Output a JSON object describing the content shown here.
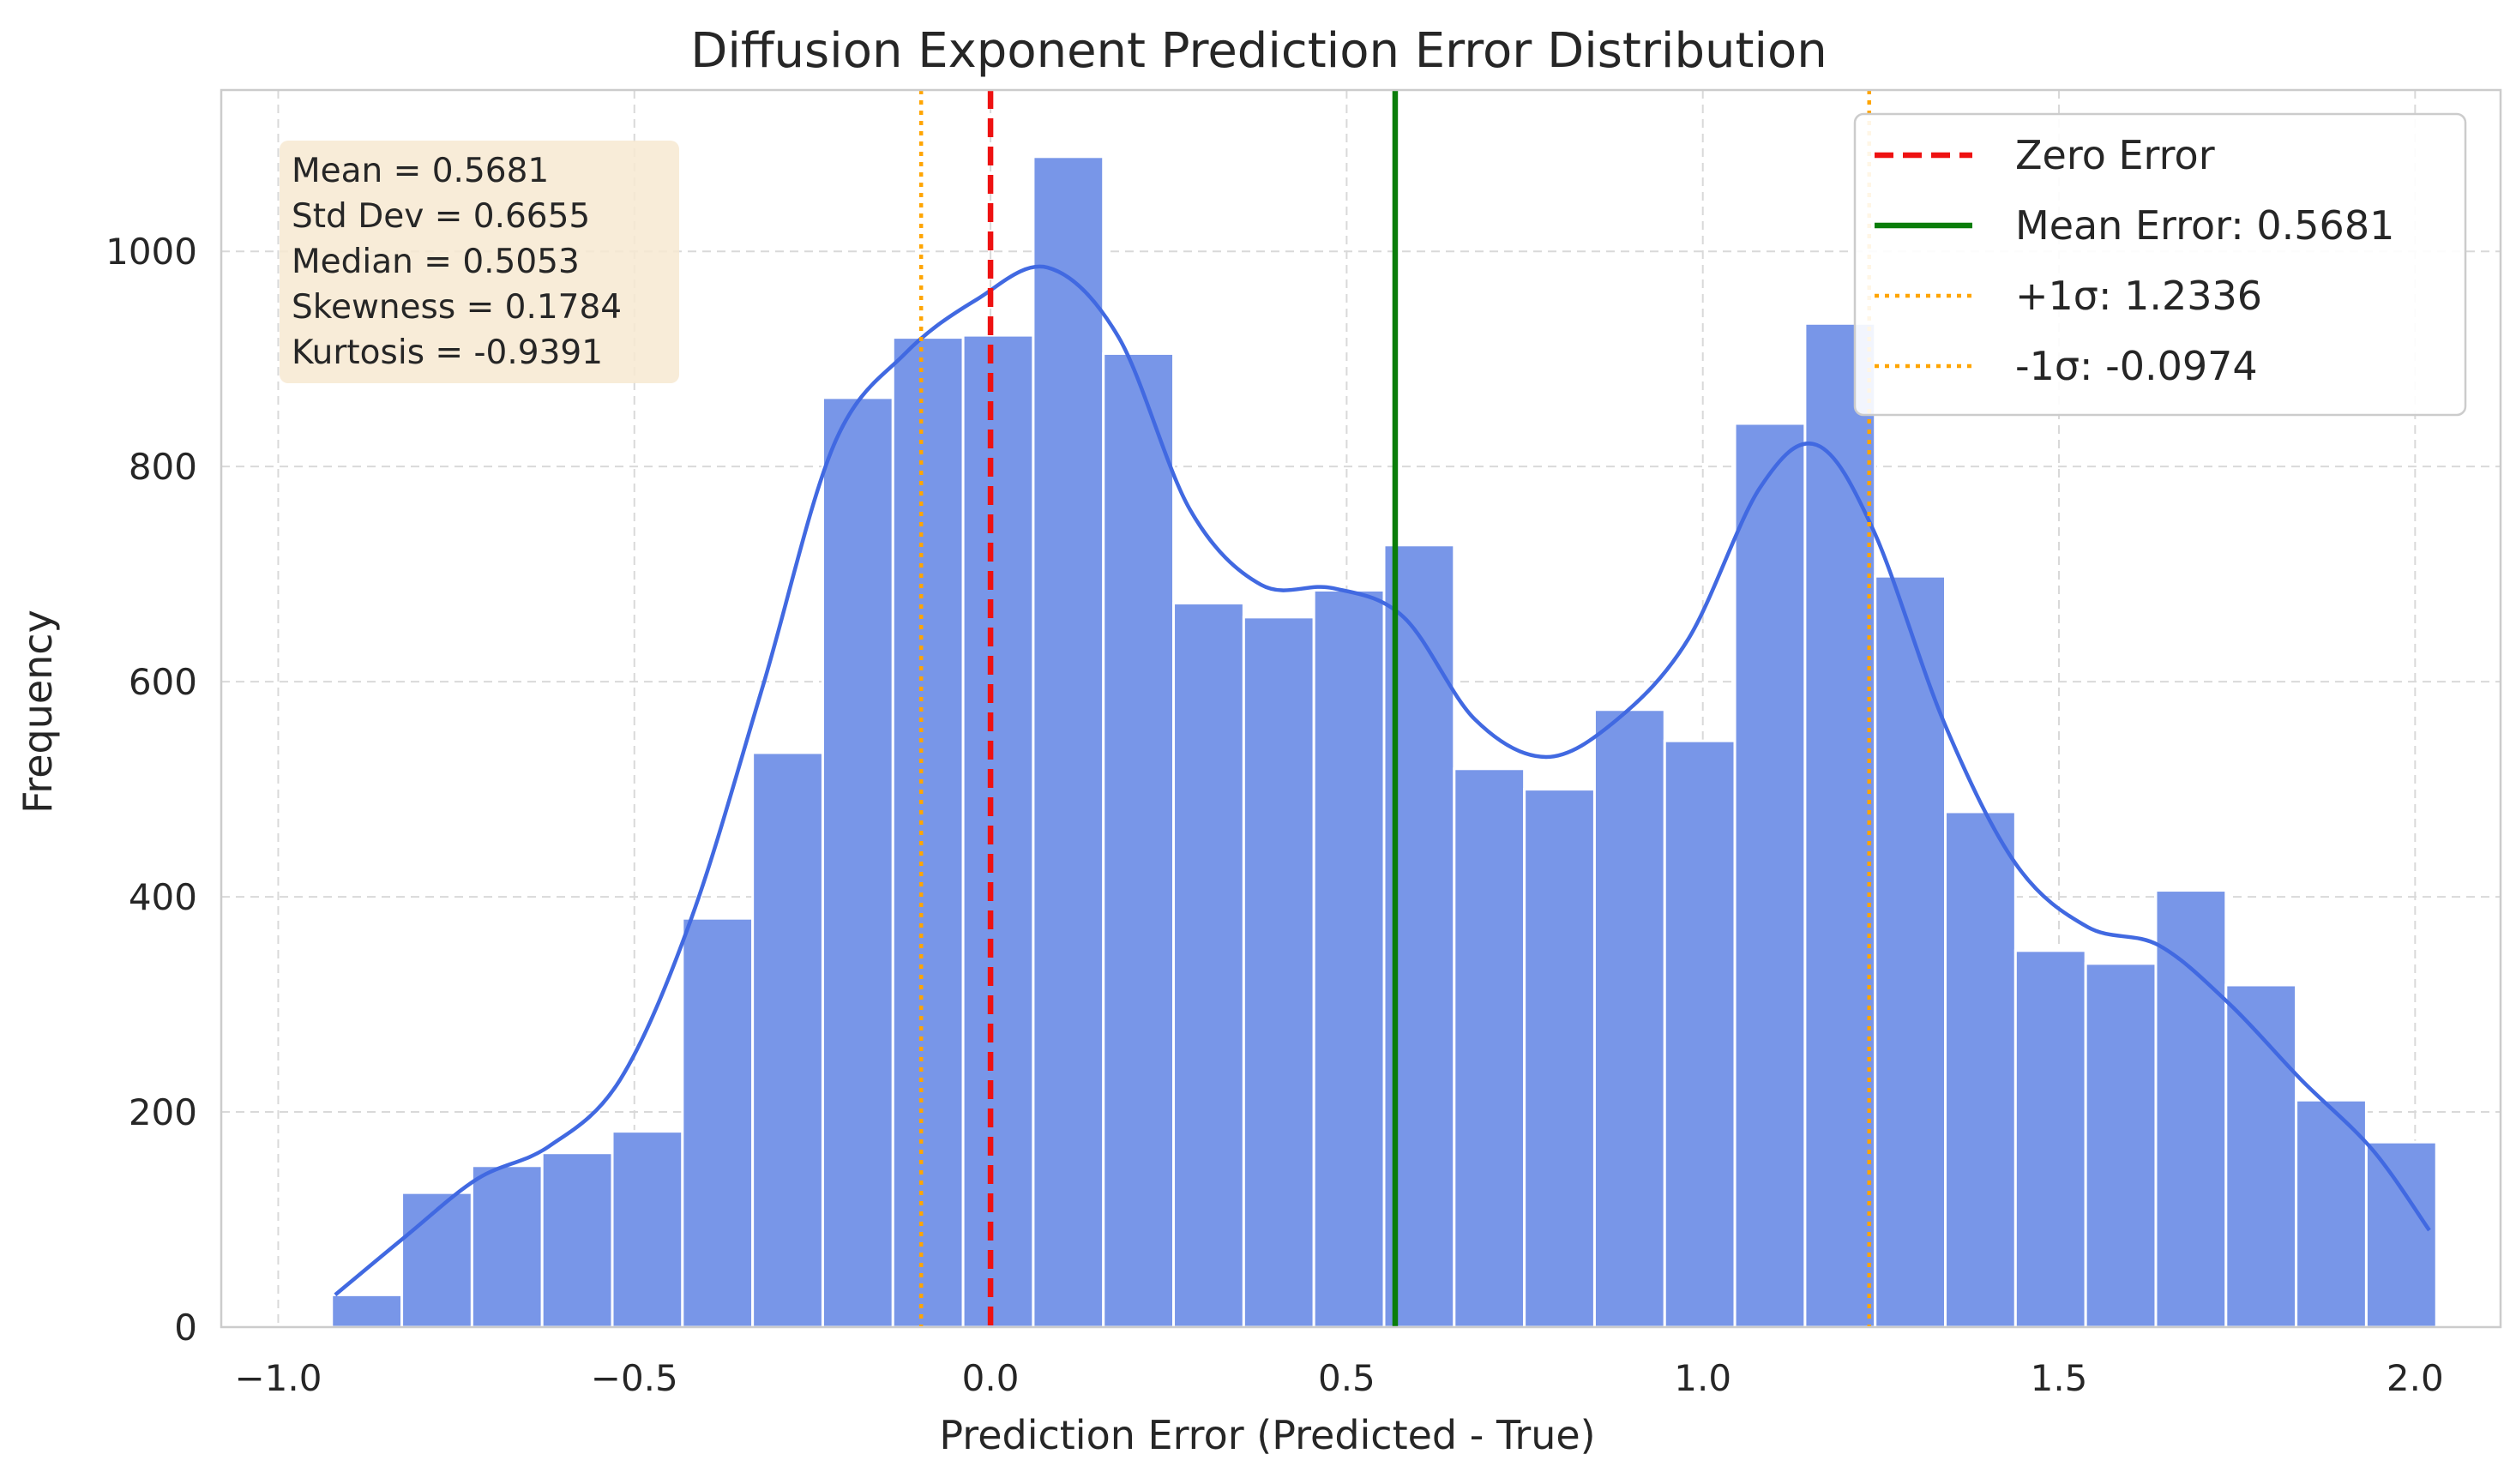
{
  "chart_data": {
    "type": "bar",
    "title": "Diffusion Exponent Prediction Error Distribution",
    "xlabel": "Prediction Error (Predicted - True)",
    "ylabel": "Frequency",
    "xlim": [
      -1.08,
      2.12
    ],
    "ylim": [
      0,
      1150
    ],
    "xticks": [
      -1.0,
      -0.5,
      0.0,
      0.5,
      1.0,
      1.5,
      2.0
    ],
    "xtick_labels": [
      "−1.0",
      "−0.5",
      "0.0",
      "0.5",
      "1.0",
      "1.5",
      "2.0"
    ],
    "yticks": [
      0,
      200,
      400,
      600,
      800,
      1000
    ],
    "ytick_labels": [
      "0",
      "200",
      "400",
      "600",
      "800",
      "1000"
    ],
    "grid": true,
    "bin_start": -0.925,
    "bin_width": 0.0985,
    "values": [
      30,
      125,
      150,
      162,
      182,
      380,
      534,
      864,
      920,
      922,
      1088,
      905,
      673,
      660,
      685,
      727,
      519,
      500,
      574,
      545,
      840,
      933,
      698,
      479,
      350,
      338,
      406,
      318,
      211,
      172
    ],
    "bar_color": "#7896e8",
    "kde": {
      "color": "#4169e1",
      "x": [
        -0.92,
        -0.82,
        -0.72,
        -0.62,
        -0.52,
        -0.42,
        -0.32,
        -0.22,
        -0.12,
        -0.02,
        0.08,
        0.18,
        0.28,
        0.38,
        0.48,
        0.58,
        0.68,
        0.78,
        0.88,
        0.98,
        1.08,
        1.16,
        1.24,
        1.34,
        1.44,
        1.54,
        1.64,
        1.74,
        1.84,
        1.94,
        2.02
      ],
      "y": [
        30,
        85,
        138,
        168,
        230,
        380,
        595,
        820,
        905,
        955,
        985,
        920,
        760,
        690,
        687,
        660,
        565,
        530,
        565,
        640,
        780,
        820,
        740,
        560,
        430,
        372,
        355,
        300,
        230,
        165,
        90
      ]
    },
    "vlines": [
      {
        "name": "Zero Error",
        "x": 0.0,
        "color": "#ee1111",
        "style": "dashed"
      },
      {
        "name": "Mean Error: 0.5681",
        "x": 0.5681,
        "color": "#0a7d0a",
        "style": "solid"
      },
      {
        "name": "+1σ: 1.2336",
        "x": 1.2336,
        "color": "#ffa500",
        "style": "dotted"
      },
      {
        "name": "-1σ: -0.0974",
        "x": -0.0974,
        "color": "#ffa500",
        "style": "dotted"
      }
    ],
    "legend_position": "top-right",
    "stats_box": {
      "lines": [
        "Mean = 0.5681",
        "Std Dev = 0.6655",
        "Median = 0.5053",
        "Skewness = 0.1784",
        "Kurtosis = -0.9391"
      ],
      "background": "#f7e9d1"
    }
  }
}
